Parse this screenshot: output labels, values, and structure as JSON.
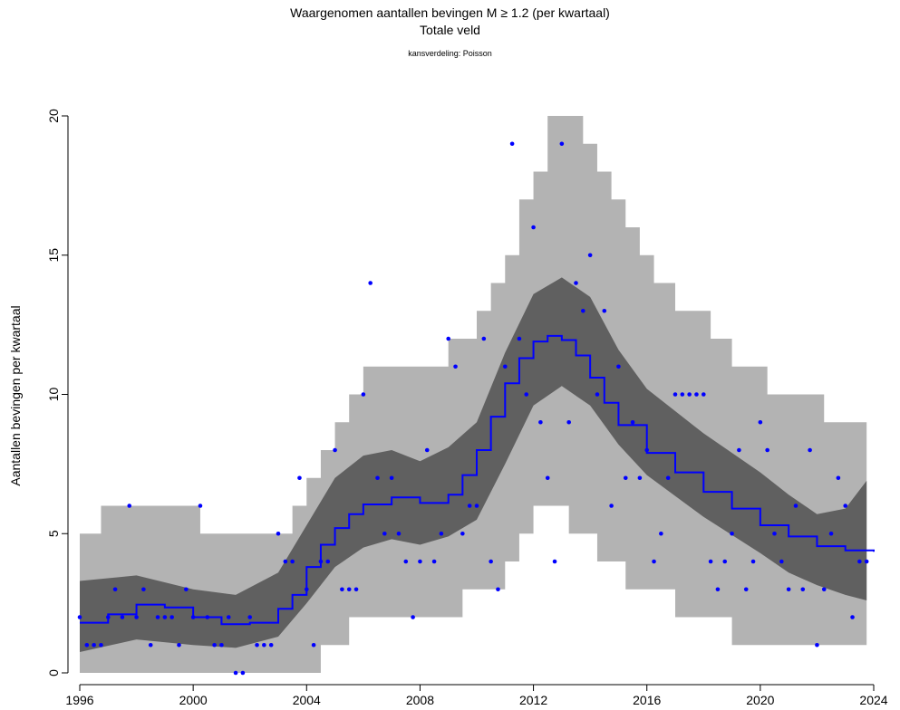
{
  "chart_data": {
    "type": "line",
    "title": "Waargenomen aantallen bevingen M ≥ 1.2 (per kwartaal)",
    "subtitle": "Totale veld",
    "note": "kansverdeling: Poisson",
    "xlabel": "",
    "ylabel": "Aantallen bevingen per kwartaal",
    "xlim": [
      1996,
      2024
    ],
    "ylim": [
      0,
      20
    ],
    "x_ticks": [
      "1996",
      "2000",
      "2004",
      "2008",
      "2012",
      "2016",
      "2020",
      "2024"
    ],
    "y_ticks": [
      "0",
      "5",
      "10",
      "15",
      "20"
    ],
    "grid": false,
    "legend": "none",
    "colors": {
      "observed": "#0000ff",
      "mean": "#0000ff",
      "inner_band": "#606060",
      "outer_band": "#b3b3b3"
    },
    "mean_curve": {
      "x": [
        1996,
        1997,
        1998,
        1999,
        2000,
        2001,
        2002,
        2003,
        2003.5,
        2004,
        2004.5,
        2005,
        2005.5,
        2006,
        2007,
        2008,
        2009,
        2009.5,
        2010,
        2010.5,
        2011,
        2011.5,
        2012,
        2012.5,
        2013,
        2013.5,
        2014,
        2014.5,
        2015,
        2016,
        2017,
        2018,
        2019,
        2020,
        2021,
        2022,
        2023,
        2024
      ],
      "y": [
        1.8,
        2.1,
        2.45,
        2.35,
        2.0,
        1.75,
        1.8,
        2.3,
        2.8,
        3.8,
        4.6,
        5.2,
        5.7,
        6.05,
        6.3,
        6.1,
        6.4,
        7.1,
        8.0,
        9.2,
        10.4,
        11.3,
        11.9,
        12.1,
        11.95,
        11.4,
        10.6,
        9.7,
        8.9,
        7.9,
        7.2,
        6.5,
        5.9,
        5.3,
        4.9,
        4.55,
        4.4,
        4.35
      ]
    },
    "inner_band": {
      "x": [
        1996,
        1998,
        2000,
        2001.5,
        2003,
        2004,
        2005,
        2006,
        2007,
        2008,
        2009,
        2010,
        2011,
        2012,
        2013,
        2014,
        2015,
        2016,
        2018,
        2020,
        2021,
        2022,
        2023,
        2023.75
      ],
      "upper": [
        3.3,
        3.5,
        3.0,
        2.8,
        3.6,
        5.3,
        7.0,
        7.8,
        8.0,
        7.6,
        8.1,
        9.0,
        11.5,
        13.6,
        14.2,
        13.5,
        11.6,
        10.2,
        8.6,
        7.2,
        6.4,
        5.7,
        5.9,
        6.9
      ],
      "lower": [
        0.75,
        1.2,
        1.0,
        0.9,
        1.3,
        2.5,
        3.8,
        4.5,
        4.8,
        4.6,
        4.9,
        5.5,
        7.5,
        9.6,
        10.3,
        9.6,
        8.2,
        7.1,
        5.6,
        4.3,
        3.6,
        3.15,
        2.8,
        2.6
      ]
    },
    "outer_band": {
      "x": [
        1996,
        1996.75,
        2000,
        2000.25,
        2003,
        2003.5,
        2004,
        2004.5,
        2005,
        2005.5,
        2006,
        2009,
        2009.5,
        2010,
        2010.5,
        2011,
        2011.5,
        2012,
        2012.5,
        2013.25,
        2013.75,
        2014.25,
        2014.75,
        2015.25,
        2015.75,
        2016.25,
        2017,
        2018.25,
        2019,
        2020.25,
        2021.5,
        2022.25,
        2023.5,
        2023.75
      ],
      "upper": [
        5,
        6,
        6,
        5,
        5,
        6,
        7,
        8,
        9,
        10,
        11,
        12,
        12,
        13,
        14,
        15,
        17,
        18,
        20,
        20,
        19,
        18,
        17,
        16,
        15,
        14,
        13,
        12,
        11,
        10,
        10,
        9,
        9,
        10
      ],
      "lower": [
        0,
        0,
        0,
        0,
        0,
        0,
        0,
        0,
        1,
        1,
        2,
        2,
        2,
        3,
        3,
        3,
        4,
        5,
        6,
        6,
        5,
        5,
        4,
        4,
        3,
        3,
        3,
        2,
        2,
        1,
        1,
        1,
        1,
        1
      ]
    },
    "observed": {
      "x": [
        1996,
        1996.25,
        1996.5,
        1996.75,
        1997,
        1997.25,
        1997.5,
        1997.75,
        1998,
        1998.25,
        1998.5,
        1998.75,
        1999,
        1999.25,
        1999.5,
        1999.75,
        2000,
        2000.25,
        2000.5,
        2000.75,
        2001,
        2001.25,
        2001.5,
        2001.75,
        2002,
        2002.25,
        2002.5,
        2002.75,
        2003,
        2003.25,
        2003.5,
        2003.75,
        2004,
        2004.25,
        2004.5,
        2004.75,
        2005,
        2005.25,
        2005.5,
        2005.75,
        2006,
        2006.25,
        2006.5,
        2006.75,
        2007,
        2007.25,
        2007.5,
        2007.75,
        2008,
        2008.25,
        2008.5,
        2008.75,
        2009,
        2009.25,
        2009.5,
        2009.75,
        2010,
        2010.25,
        2010.5,
        2010.75,
        2011,
        2011.25,
        2011.5,
        2011.75,
        2012,
        2012.25,
        2012.5,
        2012.75,
        2013,
        2013.25,
        2013.5,
        2013.75,
        2014,
        2014.25,
        2014.5,
        2014.75,
        2015,
        2015.25,
        2015.5,
        2015.75,
        2016,
        2016.25,
        2016.5,
        2016.75,
        2017,
        2017.25,
        2017.5,
        2017.75,
        2018,
        2018.25,
        2018.5,
        2018.75,
        2019,
        2019.25,
        2019.5,
        2019.75,
        2020,
        2020.25,
        2020.5,
        2020.75,
        2021,
        2021.25,
        2021.5,
        2021.75,
        2022,
        2022.25,
        2022.5,
        2022.75,
        2023,
        2023.25,
        2023.5,
        2023.75
      ],
      "y": [
        2,
        1,
        1,
        1,
        2,
        3,
        2,
        6,
        2,
        3,
        1,
        2,
        2,
        2,
        1,
        3,
        2,
        6,
        2,
        1,
        1,
        2,
        0,
        0,
        2,
        1,
        1,
        1,
        5,
        4,
        4,
        7,
        3,
        1,
        4,
        4,
        8,
        3,
        3,
        3,
        10,
        14,
        7,
        5,
        7,
        5,
        4,
        2,
        4,
        8,
        4,
        5,
        12,
        11,
        5,
        6,
        6,
        12,
        4,
        3,
        11,
        19,
        12,
        10,
        16,
        9,
        7,
        4,
        19,
        9,
        14,
        13,
        15,
        10,
        13,
        6,
        11,
        7,
        9,
        7,
        8,
        4,
        5,
        7,
        10,
        10,
        10,
        10,
        10,
        4,
        3,
        4,
        5,
        8,
        3,
        4,
        9,
        8,
        5,
        4,
        3,
        6,
        3,
        8,
        1,
        3,
        5,
        7,
        6,
        2,
        4,
        4
      ]
    }
  }
}
